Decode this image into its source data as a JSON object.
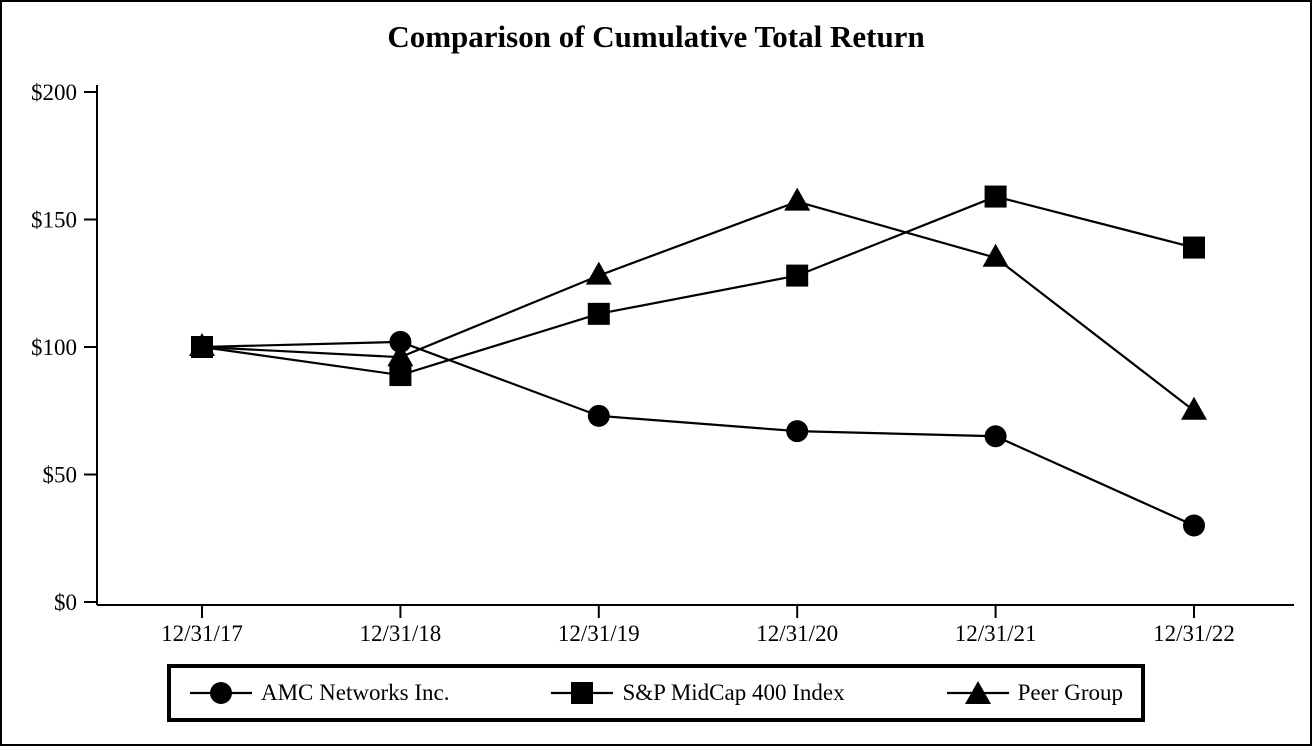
{
  "chart_data": {
    "type": "line",
    "title": "Comparison of Cumulative Total Return",
    "x_categories": [
      "12/31/17",
      "12/31/18",
      "12/31/19",
      "12/31/20",
      "12/31/21",
      "12/31/22"
    ],
    "y_tick_values": [
      0,
      50,
      100,
      150,
      200
    ],
    "y_tick_labels": [
      "$0",
      "$50",
      "$100",
      "$150",
      "$200"
    ],
    "ylim": [
      0,
      200
    ],
    "grid": false,
    "legend_position": "bottom",
    "line_color": "#000000",
    "background": "#ffffff",
    "series": [
      {
        "name": "AMC Networks Inc.",
        "marker": "circle",
        "values": [
          100,
          102,
          73,
          67,
          65,
          30
        ]
      },
      {
        "name": "S&P MidCap 400 Index",
        "marker": "square",
        "values": [
          100,
          89,
          113,
          128,
          159,
          139
        ]
      },
      {
        "name": "Peer Group",
        "marker": "triangle",
        "values": [
          100,
          96,
          128,
          157,
          135,
          75
        ]
      }
    ]
  }
}
